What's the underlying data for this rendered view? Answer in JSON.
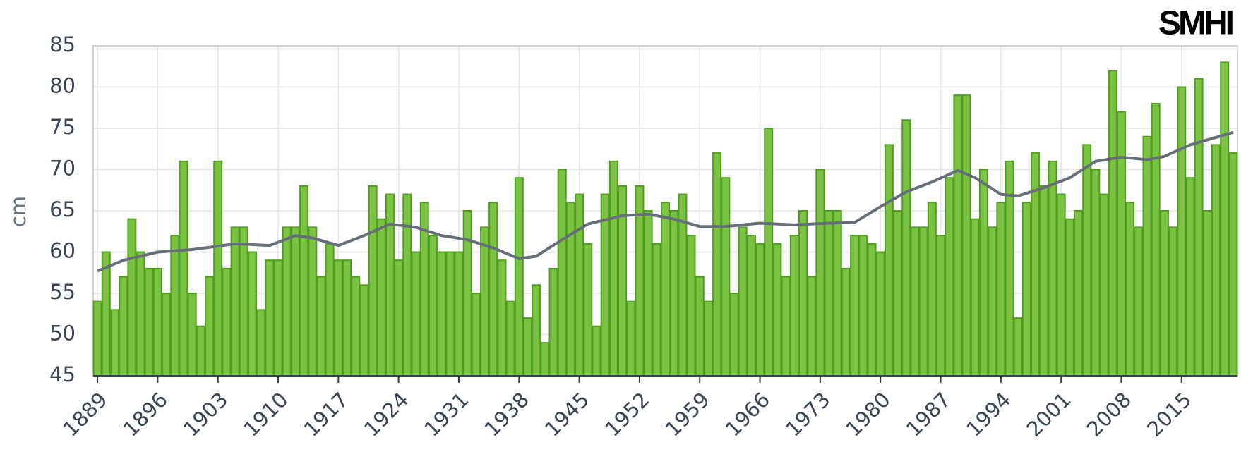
{
  "logo": "SMHI",
  "chart_data": {
    "type": "bar",
    "ylabel": "cm",
    "x": [
      1889,
      1890,
      1891,
      1892,
      1893,
      1894,
      1895,
      1896,
      1897,
      1898,
      1899,
      1900,
      1901,
      1902,
      1903,
      1904,
      1905,
      1906,
      1907,
      1908,
      1909,
      1910,
      1911,
      1912,
      1913,
      1914,
      1915,
      1916,
      1917,
      1918,
      1919,
      1920,
      1921,
      1922,
      1923,
      1924,
      1925,
      1926,
      1927,
      1928,
      1929,
      1930,
      1931,
      1932,
      1933,
      1934,
      1935,
      1936,
      1937,
      1938,
      1939,
      1940,
      1941,
      1942,
      1943,
      1944,
      1945,
      1946,
      1947,
      1948,
      1949,
      1950,
      1951,
      1952,
      1953,
      1954,
      1955,
      1956,
      1957,
      1958,
      1959,
      1960,
      1961,
      1962,
      1963,
      1964,
      1965,
      1966,
      1967,
      1968,
      1969,
      1970,
      1971,
      1972,
      1973,
      1974,
      1975,
      1976,
      1977,
      1978,
      1979,
      1980,
      1981,
      1982,
      1983,
      1984,
      1985,
      1986,
      1987,
      1988,
      1989,
      1990,
      1991,
      1992,
      1993,
      1994,
      1995,
      1996,
      1997,
      1998,
      1999,
      2000,
      2001,
      2002,
      2003,
      2004,
      2005,
      2006,
      2007,
      2008,
      2009,
      2010,
      2011,
      2012,
      2013,
      2014,
      2015,
      2016,
      2017,
      2018,
      2019,
      2020,
      2021
    ],
    "values": [
      54,
      60,
      53,
      57,
      64,
      60,
      58,
      58,
      55,
      62,
      71,
      55,
      51,
      57,
      71,
      58,
      63,
      63,
      60,
      53,
      59,
      59,
      63,
      63,
      68,
      63,
      57,
      61,
      59,
      59,
      57,
      56,
      68,
      64,
      67,
      59,
      67,
      60,
      66,
      62,
      60,
      60,
      60,
      65,
      55,
      63,
      66,
      59,
      54,
      69,
      52,
      56,
      49,
      58,
      70,
      66,
      67,
      61,
      51,
      67,
      71,
      68,
      54,
      68,
      65,
      61,
      66,
      65,
      67,
      62,
      57,
      54,
      72,
      69,
      55,
      63,
      62,
      61,
      75,
      61,
      57,
      62,
      65,
      57,
      70,
      65,
      65,
      58,
      62,
      62,
      61,
      60,
      73,
      65,
      76,
      63,
      63,
      66,
      62,
      69,
      79,
      79,
      64,
      70,
      63,
      66,
      71,
      52,
      66,
      72,
      68,
      71,
      67,
      64,
      65,
      73,
      70,
      67,
      82,
      77,
      66,
      63,
      74,
      78,
      65,
      63,
      80,
      69,
      81,
      65,
      73,
      83,
      72
    ],
    "color": "#7cc242",
    "edge_color": "#4f9e1e",
    "trend": {
      "color": "#666e7a",
      "x": [
        1889,
        1892,
        1896,
        1900,
        1905,
        1909,
        1912,
        1914,
        1917,
        1920,
        1923,
        1926,
        1929,
        1932,
        1935,
        1938,
        1940,
        1943,
        1946,
        1950,
        1953,
        1956,
        1959,
        1962,
        1966,
        1970,
        1974,
        1977,
        1980,
        1983,
        1986,
        1989,
        1991,
        1994,
        1996,
        1999,
        2002,
        2005,
        2008,
        2011,
        2013,
        2016,
        2021
      ],
      "values": [
        57.7,
        59,
        60,
        60.3,
        61,
        60.8,
        62,
        61.7,
        60.8,
        62,
        63.4,
        63,
        62,
        61.5,
        60.5,
        59.2,
        59.5,
        61.5,
        63.4,
        64.4,
        64.6,
        64,
        63.1,
        63.1,
        63.5,
        63.3,
        63.5,
        63.6,
        65.5,
        67.3,
        68.5,
        69.9,
        69,
        67,
        66.8,
        67.8,
        69,
        71,
        71.5,
        71.2,
        71.6,
        73,
        74.5
      ]
    },
    "xlim": [
      1888.5,
      2021.5
    ],
    "xticks": [
      1889,
      1896,
      1903,
      1910,
      1917,
      1924,
      1931,
      1938,
      1945,
      1952,
      1959,
      1966,
      1973,
      1980,
      1987,
      1994,
      2001,
      2008,
      2015
    ],
    "ylim": [
      45,
      85
    ],
    "yticks": [
      45,
      50,
      55,
      60,
      65,
      70,
      75,
      80,
      85
    ],
    "grid": true
  }
}
